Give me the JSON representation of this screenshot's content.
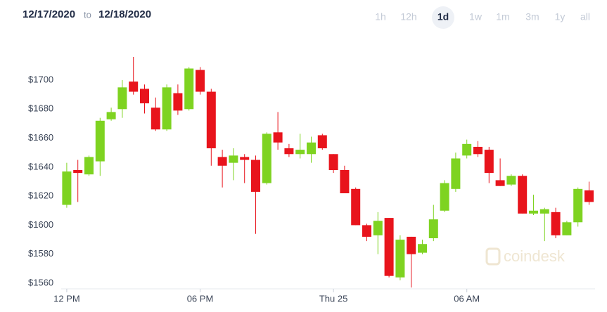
{
  "header": {
    "date_from": "12/17/2020",
    "separator": "to",
    "date_to": "12/18/2020",
    "ranges": [
      {
        "label": "1h"
      },
      {
        "label": "12h"
      },
      {
        "label": "1d",
        "active": true
      },
      {
        "label": "1w"
      },
      {
        "label": "1m"
      },
      {
        "label": "3m"
      },
      {
        "label": "1y"
      },
      {
        "label": "all"
      }
    ]
  },
  "watermark": "coindesk",
  "chart_data": {
    "type": "candlestick",
    "categories": [
      "12 PM",
      null,
      null,
      null,
      null,
      null,
      null,
      null,
      null,
      null,
      null,
      null,
      "06 PM",
      null,
      null,
      null,
      null,
      null,
      null,
      null,
      null,
      null,
      null,
      null,
      "Thu 25",
      null,
      null,
      null,
      null,
      null,
      null,
      null,
      null,
      null,
      null,
      null,
      "06 AM",
      null,
      null,
      null,
      null,
      null,
      null,
      null,
      null,
      null,
      null,
      null
    ],
    "open": [
      1614,
      1638,
      1635,
      1644,
      1673,
      1680,
      1699,
      1694,
      1681,
      1666,
      1691,
      1680,
      1707,
      1692,
      1647,
      1643,
      1647,
      1645,
      1629,
      1664,
      1653,
      1649,
      1649,
      1662,
      1649,
      1638,
      1625,
      1600,
      1593,
      1605,
      1564,
      1592,
      1581,
      1591,
      1610,
      1625,
      1648,
      1654,
      1652,
      1631,
      1628,
      1634,
      1608,
      1608,
      1609,
      1593,
      1602,
      1624
    ],
    "high": [
      1643,
      1645,
      1648,
      1674,
      1681,
      1700,
      1716,
      1697,
      1688,
      1697,
      1697,
      1709,
      1709,
      1694,
      1652,
      1653,
      1649,
      1648,
      1664,
      1678,
      1656,
      1663,
      1661,
      1663,
      1649,
      1641,
      1626,
      1601,
      1609,
      1605,
      1593,
      1592,
      1590,
      1614,
      1631,
      1650,
      1659,
      1658,
      1654,
      1646,
      1635,
      1635,
      1621,
      1612,
      1612,
      1603,
      1626,
      1630
    ],
    "low": [
      1612,
      1616,
      1634,
      1634,
      1672,
      1674,
      1690,
      1677,
      1665,
      1665,
      1676,
      1679,
      1690,
      1641,
      1626,
      1631,
      1629,
      1594,
      1628,
      1652,
      1647,
      1646,
      1643,
      1652,
      1636,
      1622,
      1600,
      1589,
      1580,
      1564,
      1562,
      1557,
      1580,
      1589,
      1609,
      1623,
      1646,
      1647,
      1629,
      1627,
      1627,
      1608,
      1607,
      1589,
      1591,
      1593,
      1599,
      1614
    ],
    "close": [
      1637,
      1636,
      1647,
      1672,
      1678,
      1695,
      1692,
      1684,
      1666,
      1695,
      1679,
      1708,
      1692,
      1653,
      1641,
      1648,
      1645,
      1623,
      1663,
      1657,
      1649,
      1652,
      1657,
      1653,
      1638,
      1622,
      1600,
      1592,
      1603,
      1565,
      1590,
      1580,
      1587,
      1604,
      1629,
      1646,
      1656,
      1649,
      1636,
      1627,
      1634,
      1608,
      1610,
      1611,
      1593,
      1602,
      1625,
      1616
    ],
    "up_color": "#7ed321",
    "down_color": "#e8141c",
    "ylim": [
      1552,
      1722
    ],
    "yticks": [
      {
        "value": 1560,
        "label": "$1560"
      },
      {
        "value": 1580,
        "label": "$1580"
      },
      {
        "value": 1600,
        "label": "$1600"
      },
      {
        "value": 1620,
        "label": "$1620"
      },
      {
        "value": 1640,
        "label": "$1640"
      },
      {
        "value": 1660,
        "label": "$1660"
      },
      {
        "value": 1680,
        "label": "$1680"
      },
      {
        "value": 1700,
        "label": "$1700"
      }
    ]
  }
}
